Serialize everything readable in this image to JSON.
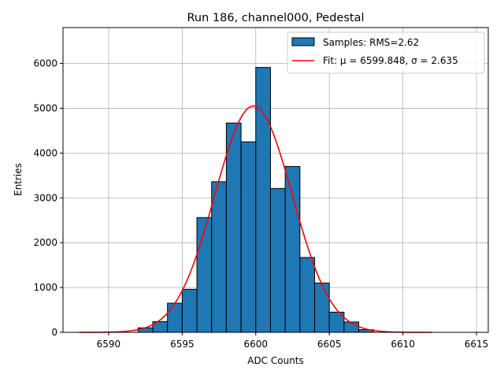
{
  "chart_data": {
    "type": "bar",
    "title": "Run 186, channel000, Pedestal",
    "xlabel": "ADC Counts",
    "ylabel": "Entries",
    "xlim": [
      6586.9,
      6615.8
    ],
    "ylim": [
      0,
      6800
    ],
    "xticks": [
      6590,
      6595,
      6600,
      6605,
      6610,
      6615
    ],
    "yticks": [
      0,
      1000,
      2000,
      3000,
      4000,
      5000,
      6000
    ],
    "grid": true,
    "legend_position": "top-right",
    "bin_width": 1,
    "bins": {
      "left_edges": [
        6592,
        6593,
        6594,
        6595,
        6596,
        6597,
        6598,
        6599,
        6600,
        6601,
        6602,
        6603,
        6604,
        6605,
        6606,
        6607
      ],
      "counts": [
        100,
        240,
        650,
        960,
        2560,
        3360,
        4670,
        4250,
        5910,
        3210,
        3700,
        1670,
        1100,
        450,
        230,
        60
      ],
      "color": "#1f77b4",
      "edge_color": "#000000"
    },
    "fit": {
      "function": "gaussian",
      "mu": 6599.848,
      "sigma": 2.635,
      "amplitude": 5050,
      "x_range": [
        6588,
        6612
      ],
      "color": "#ff0000"
    },
    "legend": [
      {
        "label": "Samples: RMS=2.62",
        "kind": "patch",
        "color": "#1f77b4"
      },
      {
        "label": "Fit: μ = 6599.848, σ = 2.635",
        "kind": "line",
        "color": "#ff0000"
      }
    ]
  }
}
